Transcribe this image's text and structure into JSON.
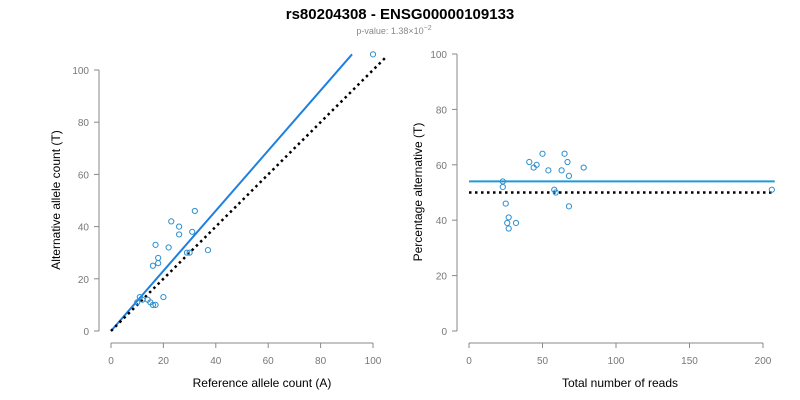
{
  "page": {
    "title": "rs80204308 - ENSG00000109133",
    "pvalue_prefix": "p-value: 1.38×10",
    "pvalue_exponent": "−2"
  },
  "colors": {
    "points": "#2d8fcf",
    "fit_line_left": "#1e7fe0",
    "fit_line_right": "#1e9ad6",
    "expected_line": "#000000",
    "axis": "#888888"
  },
  "chart_data": [
    {
      "type": "scatter",
      "xlabel": "Reference allele count (A)",
      "ylabel": "Alternative allele count (T)",
      "xlim": [
        0,
        100
      ],
      "ylim": [
        0,
        100
      ],
      "xticks": [
        0,
        20,
        40,
        60,
        80,
        100
      ],
      "yticks": [
        0,
        20,
        40,
        60,
        80,
        100
      ],
      "grid": false,
      "points": [
        {
          "x": 10,
          "y": 11
        },
        {
          "x": 11,
          "y": 13
        },
        {
          "x": 12,
          "y": 12
        },
        {
          "x": 14,
          "y": 12
        },
        {
          "x": 15,
          "y": 11
        },
        {
          "x": 16,
          "y": 10
        },
        {
          "x": 17,
          "y": 10
        },
        {
          "x": 16,
          "y": 25
        },
        {
          "x": 18,
          "y": 26
        },
        {
          "x": 18,
          "y": 28
        },
        {
          "x": 17,
          "y": 33
        },
        {
          "x": 20,
          "y": 13
        },
        {
          "x": 22,
          "y": 32
        },
        {
          "x": 23,
          "y": 42
        },
        {
          "x": 26,
          "y": 37
        },
        {
          "x": 26,
          "y": 40
        },
        {
          "x": 29,
          "y": 30
        },
        {
          "x": 30,
          "y": 30
        },
        {
          "x": 31,
          "y": 38
        },
        {
          "x": 32,
          "y": 46
        },
        {
          "x": 37,
          "y": 31
        },
        {
          "x": 100,
          "y": 106
        }
      ],
      "fit_line": {
        "x": [
          0,
          92
        ],
        "y": [
          0,
          106
        ],
        "style": "solid"
      },
      "expected_line": {
        "x": [
          0,
          105
        ],
        "y": [
          0,
          105
        ],
        "style": "dotted"
      }
    },
    {
      "type": "scatter",
      "xlabel": "Total number of reads",
      "ylabel": "Percentage alternative (T)",
      "xlim": [
        0,
        200
      ],
      "ylim": [
        0,
        100
      ],
      "xticks": [
        0,
        50,
        100,
        150,
        200
      ],
      "yticks": [
        0,
        20,
        40,
        60,
        80,
        100
      ],
      "grid": false,
      "points": [
        {
          "x": 23,
          "y": 54
        },
        {
          "x": 23,
          "y": 52
        },
        {
          "x": 25,
          "y": 46
        },
        {
          "x": 26,
          "y": 39
        },
        {
          "x": 27,
          "y": 41
        },
        {
          "x": 27,
          "y": 37
        },
        {
          "x": 32,
          "y": 39
        },
        {
          "x": 41,
          "y": 61
        },
        {
          "x": 44,
          "y": 59
        },
        {
          "x": 46,
          "y": 60
        },
        {
          "x": 50,
          "y": 64
        },
        {
          "x": 54,
          "y": 58
        },
        {
          "x": 58,
          "y": 51
        },
        {
          "x": 59,
          "y": 50
        },
        {
          "x": 63,
          "y": 58
        },
        {
          "x": 65,
          "y": 64
        },
        {
          "x": 67,
          "y": 61
        },
        {
          "x": 68,
          "y": 56
        },
        {
          "x": 68,
          "y": 45
        },
        {
          "x": 78,
          "y": 59
        },
        {
          "x": 206,
          "y": 51
        }
      ],
      "fit_line": {
        "x": [
          0,
          208
        ],
        "y": [
          54,
          54
        ],
        "style": "solid"
      },
      "expected_line": {
        "x": [
          0,
          208
        ],
        "y": [
          50,
          50
        ],
        "style": "dotted"
      }
    }
  ]
}
